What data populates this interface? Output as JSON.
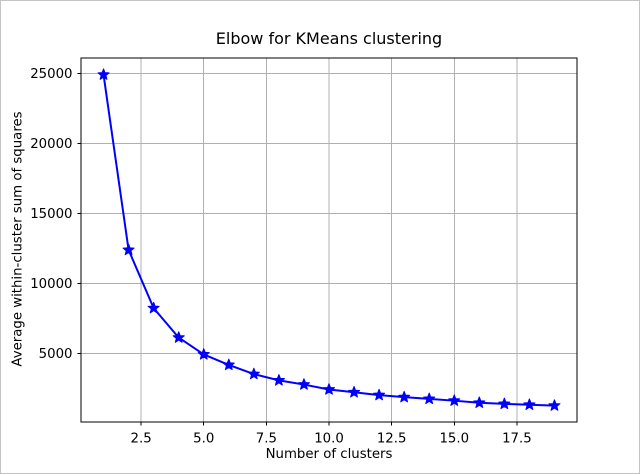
{
  "figure": {
    "background": "#ffffff",
    "border_color": "#c4c4c4"
  },
  "chart_data": {
    "type": "line",
    "title": "Elbow for KMeans clustering",
    "xlabel": "Number of clusters",
    "ylabel": "Average within-cluster sum of squares",
    "x": [
      1,
      2,
      3,
      4,
      5,
      6,
      7,
      8,
      9,
      10,
      11,
      12,
      13,
      14,
      15,
      16,
      17,
      18,
      19
    ],
    "y": [
      24900,
      12400,
      8250,
      6150,
      4950,
      4200,
      3550,
      3100,
      2800,
      2450,
      2250,
      2050,
      1900,
      1780,
      1650,
      1500,
      1420,
      1360,
      1300
    ],
    "series_name": "Average within-cluster sum of squares",
    "marker": "star",
    "grid": true,
    "legend": "none",
    "xlim": [
      0.1,
      19.9
    ],
    "ylim": [
      130,
      26090
    ],
    "xticks": [
      2.5,
      5.0,
      7.5,
      10.0,
      12.5,
      15.0,
      17.5
    ],
    "xtick_labels": [
      "2.5",
      "5.0",
      "7.5",
      "10.0",
      "12.5",
      "15.0",
      "17.5"
    ],
    "yticks": [
      5000,
      10000,
      15000,
      20000,
      25000
    ],
    "ytick_labels": [
      "5000",
      "10000",
      "15000",
      "20000",
      "25000"
    ],
    "colors": {
      "line": "#0000ff",
      "marker": "#0000ff",
      "grid": "#b0b0b0",
      "spine": "#000000",
      "text": "#000000"
    }
  }
}
